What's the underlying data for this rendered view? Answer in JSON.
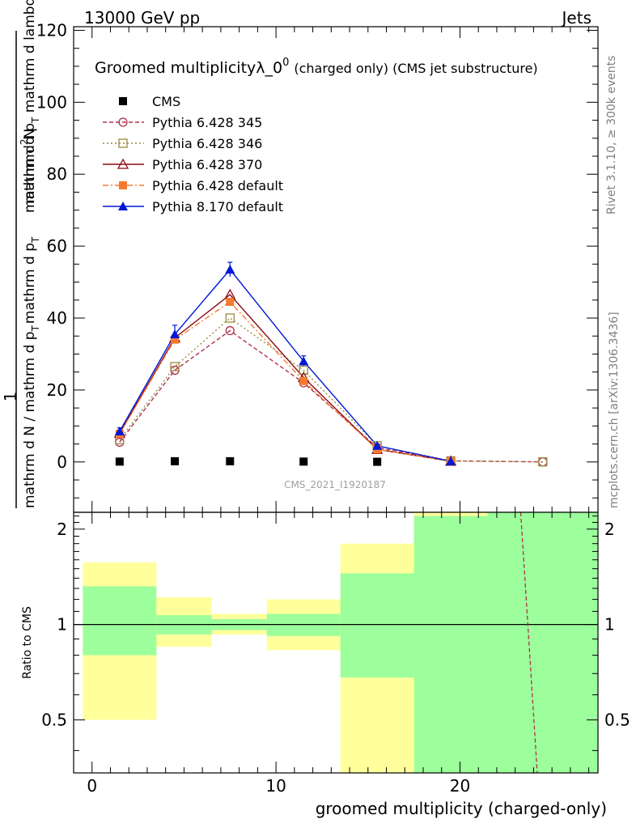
{
  "header": {
    "left": "13000 GeV pp",
    "right": "Jets"
  },
  "side_labels": {
    "rivet": "Rivet 3.1.10, ≥ 300k events",
    "mcplots": "mcplots.cern.ch [arXiv:1306.3436]"
  },
  "chart_data": [
    {
      "type": "line",
      "title_main": "Groomed multiplicityλ_0",
      "title_sup": "0",
      "title_rest": "(charged only) (CMS jet substructure)",
      "ylabel": "1 / (mathrm d N / mathrm d p_T mathrm d p_T mathrm d lambda) · mathrm d²N / mathrm d p_T mathrm d lambda",
      "ylabel_parts": {
        "one": "1",
        "denominator": "mathrm d N / mathrm d p",
        "denominator_sub": "T",
        "denominator_tail": "mathrm d p",
        "denominator_tail_sub": "T",
        "numerator_a": "mathrm d",
        "numerator_sup": "2",
        "numerator_b": "N",
        "numerator_c": "mathrm d p",
        "numerator_sub": "T",
        "numerator_d": " mathrm d lambda"
      },
      "watermark": "CMS_2021_I1920187",
      "xlim": [
        -1,
        27.5
      ],
      "ylim": [
        -14,
        121
      ],
      "yticks": [
        0,
        20,
        40,
        60,
        80,
        100,
        120
      ],
      "xtick_labels": [
        "0",
        "10",
        "20"
      ],
      "series": [
        {
          "name": "CMS",
          "color": "#000000",
          "marker": "square-filled",
          "x": [
            1.5,
            4.5,
            7.5,
            11.5,
            15.5
          ],
          "values": [
            0.1,
            0.2,
            0.2,
            0.1,
            0.05
          ]
        },
        {
          "name": "Pythia 6.428 345",
          "color": "#b0304a",
          "marker": "circle-open",
          "dash": "dashed",
          "x": [
            1.5,
            4.5,
            7.5,
            11.5,
            15.5,
            19.5,
            24.5
          ],
          "values": [
            5.5,
            25.5,
            36.5,
            22.0,
            4.0,
            0.3,
            0.02
          ]
        },
        {
          "name": "Pythia 6.428 346",
          "color": "#9a8a40",
          "marker": "square-open",
          "dash": "dotted",
          "x": [
            1.5,
            4.5,
            7.5,
            11.5,
            15.5,
            19.5,
            24.5
          ],
          "values": [
            6.2,
            26.5,
            40.0,
            25.5,
            4.5,
            0.3,
            0.02
          ]
        },
        {
          "name": "Pythia 6.428 370",
          "color": "#8b0a14",
          "marker": "triangle-open",
          "dash": "solid",
          "x": [
            1.5,
            4.5,
            7.5,
            11.5,
            15.5,
            19.5
          ],
          "values": [
            8.0,
            34.5,
            46.5,
            23.5,
            3.5,
            0.2
          ]
        },
        {
          "name": "Pythia 6.428 default",
          "color": "#f47a30",
          "marker": "square-filled",
          "dash": "dashdot",
          "x": [
            1.5,
            4.5,
            7.5,
            11.5,
            15.5,
            19.5
          ],
          "values": [
            7.8,
            34.0,
            44.5,
            22.5,
            3.5,
            0.2
          ]
        },
        {
          "name": "Pythia 8.170 default",
          "color": "#0018d8",
          "marker": "triangle-filled",
          "dash": "solid",
          "x": [
            1.5,
            4.5,
            7.5,
            11.5,
            15.5,
            19.5
          ],
          "values": [
            8.5,
            35.5,
            53.5,
            28.0,
            4.5,
            0.2
          ],
          "errors": [
            1.0,
            2.5,
            2.0,
            1.5,
            0.5,
            0.1
          ]
        }
      ]
    },
    {
      "type": "area",
      "ylabel": "Ratio to CMS",
      "xlabel": "groomed multiplicity (charged-only)",
      "xlim": [
        -1,
        27.5
      ],
      "ylim": [
        0.34,
        2.26
      ],
      "yticks": [
        0.5,
        1,
        2
      ],
      "ytick_labels": [
        "0.5",
        "1",
        "2"
      ],
      "xticks": [
        0,
        10,
        20
      ],
      "xtick_labels": [
        "0",
        "10",
        "20"
      ],
      "reference_line": 1,
      "bands": [
        {
          "x": [
            -0.5,
            3.5
          ],
          "stat": [
            0.8,
            1.32
          ],
          "total": [
            0.5,
            1.57
          ]
        },
        {
          "x": [
            3.5,
            6.5
          ],
          "stat": [
            0.93,
            1.07
          ],
          "total": [
            0.85,
            1.22
          ]
        },
        {
          "x": [
            6.5,
            9.5
          ],
          "stat": [
            0.96,
            1.04
          ],
          "total": [
            0.93,
            1.08
          ]
        },
        {
          "x": [
            9.5,
            13.5
          ],
          "stat": [
            0.92,
            1.08
          ],
          "total": [
            0.83,
            1.2
          ]
        },
        {
          "x": [
            13.5,
            17.5
          ],
          "stat": [
            0.68,
            1.45
          ],
          "total": [
            0.34,
            1.8
          ]
        },
        {
          "x": [
            17.5,
            21.5
          ],
          "stat": [
            0.34,
            2.2
          ],
          "total": [
            0.34,
            2.26
          ]
        },
        {
          "x": [
            21.5,
            27.5
          ],
          "stat": [
            0.34,
            2.26
          ],
          "total": [
            0.34,
            2.26
          ]
        }
      ],
      "ratio_line": {
        "name": "Pythia 6.428 345",
        "color": "#b0304a",
        "x": [
          23.3,
          24.2
        ],
        "values": [
          2.26,
          0.34
        ]
      },
      "colors": {
        "stat": "#9cff9c",
        "total": "#ffff9c"
      }
    }
  ]
}
